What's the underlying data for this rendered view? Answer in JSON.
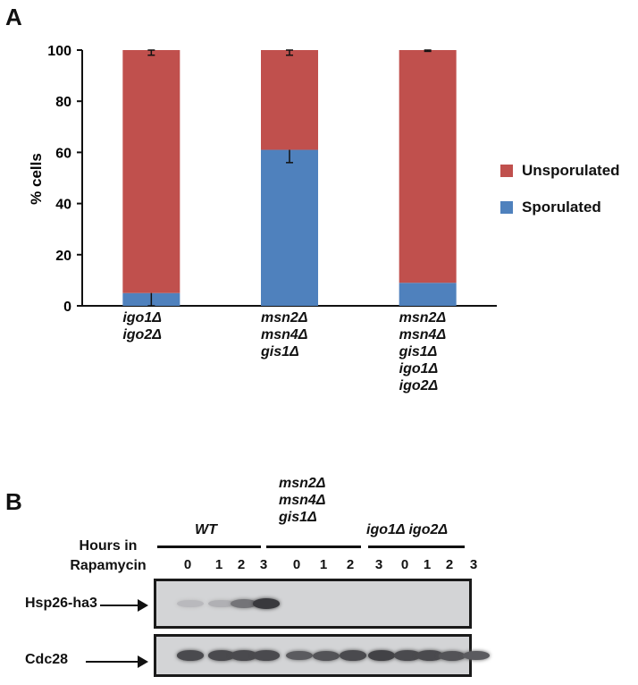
{
  "panel_a": {
    "letter": "A"
  },
  "panel_b": {
    "letter": "B"
  },
  "chart_data": {
    "type": "bar",
    "stacked": true,
    "ylabel": "% cells",
    "ylim": [
      0,
      100
    ],
    "yticks": [
      "0",
      "20",
      "40",
      "60",
      "80",
      "100"
    ],
    "categories": [
      [
        "igo1Δ",
        "igo2Δ"
      ],
      [
        "msn2Δ",
        "msn4Δ",
        "gis1Δ"
      ],
      [
        "msn2Δ",
        "msn4Δ",
        "gis1Δ",
        "igo1Δ",
        "igo2Δ"
      ]
    ],
    "series": [
      {
        "name": "Sporulated",
        "values": [
          5,
          61,
          9
        ],
        "error": [
          5,
          5,
          0
        ],
        "color": "#4f81bd"
      },
      {
        "name": "Unsporulated",
        "values": [
          95,
          39,
          91
        ],
        "error": [
          2,
          2,
          0.5
        ],
        "color": "#c0504d"
      }
    ],
    "legend": [
      "Unsporulated",
      "Sporulated"
    ],
    "legend_position": "right"
  },
  "blot": {
    "x_header": [
      "Hours in",
      "Rapamycin"
    ],
    "groups": [
      {
        "label": [
          "WT"
        ],
        "lanes": [
          "0",
          "1",
          "2",
          "3"
        ]
      },
      {
        "label": [
          "msn2Δ",
          "msn4Δ",
          "gis1Δ"
        ],
        "lanes": [
          "0",
          "1",
          "2",
          "3"
        ]
      },
      {
        "label": [
          "igo1Δ igo2Δ"
        ],
        "lanes": [
          "0",
          "1",
          "2",
          "3"
        ]
      }
    ],
    "rows": [
      {
        "label": "Hsp26-ha3",
        "intensity": [
          0.15,
          0.2,
          0.55,
          0.9,
          0,
          0,
          0,
          0,
          0,
          0,
          0,
          0
        ]
      },
      {
        "label": "Cdc28",
        "intensity": [
          0.8,
          0.8,
          0.8,
          0.8,
          0.7,
          0.75,
          0.8,
          0.85,
          0.8,
          0.8,
          0.75,
          0.7
        ]
      }
    ]
  }
}
